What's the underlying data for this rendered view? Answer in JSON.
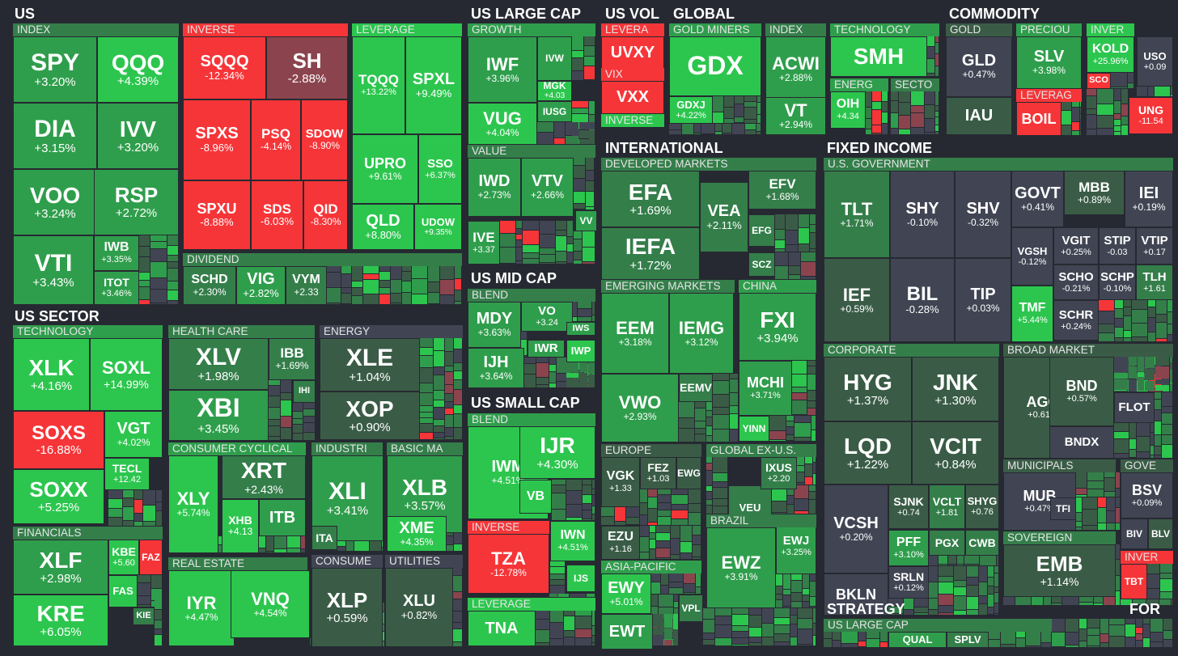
{
  "colors": {
    "background": "#262931",
    "strong_green": "#2cc64e",
    "green": "#2f9e4c",
    "mid_green": "#347e4a",
    "dark_green": "#3a5c46",
    "neutral": "#414553",
    "dark_red": "#8b444e",
    "red": "#f63538"
  },
  "sectors": [
    "US",
    "US SECTOR",
    "US LARGE CAP",
    "US MID CAP",
    "US SMALL CAP",
    "US VOL",
    "GLOBAL",
    "INTERNATIONAL",
    "COMMODITY",
    "FIXED INCOME",
    "STRATEGY",
    "FOR"
  ],
  "groups": [
    "INDEX",
    "INVERSE",
    "LEVERAGE",
    "DIVIDEND",
    "TECHNOLOGY",
    "HEALTH CARE",
    "ENERGY",
    "FINANCIALS",
    "CONSUMER CYCLICAL",
    "INDUSTRI",
    "BASIC MA",
    "REAL ESTATE",
    "CONSUME",
    "UTILITIES",
    "GROWTH",
    "VALUE",
    "BLEND",
    "BLEND",
    "INVERSE",
    "LEVERAGE",
    "LEVERA",
    "VIX",
    "INVERSE",
    "GOLD MINERS",
    "INDEX",
    "TECHNOLOGY",
    "ENERG",
    "SECTO",
    "DEVELOPED MARKETS",
    "EMERGING MARKETS",
    "CHINA",
    "EUROPE",
    "GLOBAL EX-U.S.",
    "ASIA-PACIFIC",
    "BRAZIL",
    "GOLD",
    "PRECIOU",
    "INVER",
    "LEVERAG",
    "U.S. GOVERNMENT",
    "CORPORATE",
    "BROAD MARKET",
    "MUNICIPALS",
    "GOVE",
    "SOVEREIGN",
    "INVER",
    "US LARGE CAP"
  ],
  "chart_data": {
    "type": "treemap",
    "title": "",
    "tiles": [
      {
        "ticker": "SPY",
        "change": "+3.20%",
        "value": 3.2
      },
      {
        "ticker": "QQQ",
        "change": "+4.39%",
        "value": 4.39
      },
      {
        "ticker": "DIA",
        "change": "+3.15%",
        "value": 3.15
      },
      {
        "ticker": "IVV",
        "change": "+3.20%",
        "value": 3.2
      },
      {
        "ticker": "VOO",
        "change": "+3.24%",
        "value": 3.24
      },
      {
        "ticker": "RSP",
        "change": "+2.72%",
        "value": 2.72
      },
      {
        "ticker": "VTI",
        "change": "+3.43%",
        "value": 3.43
      },
      {
        "ticker": "IWB",
        "change": "+3.35%",
        "value": 3.35
      },
      {
        "ticker": "ITOT",
        "change": "+3.46%",
        "value": 3.46
      },
      {
        "ticker": "SQQQ",
        "change": "-12.34%",
        "value": -12.34
      },
      {
        "ticker": "SH",
        "change": "-2.88%",
        "value": -2.88
      },
      {
        "ticker": "SPXS",
        "change": "-8.96%",
        "value": -8.96
      },
      {
        "ticker": "PSQ",
        "change": "-4.14%",
        "value": -4.14
      },
      {
        "ticker": "SDOW",
        "change": "-8.90%",
        "value": -8.9
      },
      {
        "ticker": "SPXU",
        "change": "-8.88%",
        "value": -8.88
      },
      {
        "ticker": "SDS",
        "change": "-6.03%",
        "value": -6.03
      },
      {
        "ticker": "QID",
        "change": "-8.30%",
        "value": -8.3
      },
      {
        "ticker": "TQQQ",
        "change": "+13.22%",
        "value": 13.22
      },
      {
        "ticker": "SPXL",
        "change": "+9.49%",
        "value": 9.49
      },
      {
        "ticker": "UPRO",
        "change": "+9.61%",
        "value": 9.61
      },
      {
        "ticker": "SSO",
        "change": "+6.37%",
        "value": 6.37
      },
      {
        "ticker": "QLD",
        "change": "+8.80%",
        "value": 8.8
      },
      {
        "ticker": "UDOW",
        "change": "+9.35%",
        "value": 9.35
      },
      {
        "ticker": "SCHD",
        "change": "+2.30%",
        "value": 2.3
      },
      {
        "ticker": "VIG",
        "change": "+2.82%",
        "value": 2.82
      },
      {
        "ticker": "VYM",
        "change": "+2.33",
        "value": 2.33
      },
      {
        "ticker": "XLK",
        "change": "+4.16%",
        "value": 4.16
      },
      {
        "ticker": "SOXL",
        "change": "+14.99%",
        "value": 14.99
      },
      {
        "ticker": "SOXS",
        "change": "-16.88%",
        "value": -16.88
      },
      {
        "ticker": "VGT",
        "change": "+4.02%",
        "value": 4.02
      },
      {
        "ticker": "SOXX",
        "change": "+5.25%",
        "value": 5.25
      },
      {
        "ticker": "TECL",
        "change": "+12.42",
        "value": 12.42
      },
      {
        "ticker": "XLF",
        "change": "+2.98%",
        "value": 2.98
      },
      {
        "ticker": "KBE",
        "change": "+5.60",
        "value": 5.6
      },
      {
        "ticker": "FAZ",
        "change": "",
        "value": -8
      },
      {
        "ticker": "FAS",
        "change": "",
        "value": 8
      },
      {
        "ticker": "KRE",
        "change": "+6.05%",
        "value": 6.05
      },
      {
        "ticker": "KIE",
        "change": "",
        "value": 2
      },
      {
        "ticker": "XLV",
        "change": "+1.98%",
        "value": 1.98
      },
      {
        "ticker": "IBB",
        "change": "+1.69%",
        "value": 1.69
      },
      {
        "ticker": "IHI",
        "change": "",
        "value": 2
      },
      {
        "ticker": "XBI",
        "change": "+3.45%",
        "value": 3.45
      },
      {
        "ticker": "XLE",
        "change": "+1.04%",
        "value": 1.04
      },
      {
        "ticker": "XOP",
        "change": "+0.90%",
        "value": 0.9
      },
      {
        "ticker": "XRT",
        "change": "+2.43%",
        "value": 2.43
      },
      {
        "ticker": "XLY",
        "change": "+5.74%",
        "value": 5.74
      },
      {
        "ticker": "XHB",
        "change": "+4.13",
        "value": 4.13
      },
      {
        "ticker": "ITB",
        "change": "",
        "value": 3
      },
      {
        "ticker": "XLI",
        "change": "+3.41%",
        "value": 3.41
      },
      {
        "ticker": "ITA",
        "change": "",
        "value": 2
      },
      {
        "ticker": "XLB",
        "change": "+3.57%",
        "value": 3.57
      },
      {
        "ticker": "XME",
        "change": "+4.35%",
        "value": 4.35
      },
      {
        "ticker": "IYR",
        "change": "+4.47%",
        "value": 4.47
      },
      {
        "ticker": "VNQ",
        "change": "+4.54%",
        "value": 4.54
      },
      {
        "ticker": "XLP",
        "change": "+0.59%",
        "value": 0.59
      },
      {
        "ticker": "XLU",
        "change": "+0.82%",
        "value": 0.82
      },
      {
        "ticker": "IWF",
        "change": "+3.96%",
        "value": 3.96
      },
      {
        "ticker": "IVW",
        "change": "",
        "value": 3.5
      },
      {
        "ticker": "MGK",
        "change": "+4.03",
        "value": 4.03
      },
      {
        "ticker": "VUG",
        "change": "+4.04%",
        "value": 4.04
      },
      {
        "ticker": "IUSG",
        "change": "",
        "value": 3.5
      },
      {
        "ticker": "IWD",
        "change": "+2.73%",
        "value": 2.73
      },
      {
        "ticker": "VTV",
        "change": "+2.66%",
        "value": 2.66
      },
      {
        "ticker": "IVE",
        "change": "+3.37",
        "value": 3.37
      },
      {
        "ticker": "VV",
        "change": "",
        "value": 3
      },
      {
        "ticker": "MDY",
        "change": "+3.63%",
        "value": 3.63
      },
      {
        "ticker": "VO",
        "change": "+3.24",
        "value": 3.24
      },
      {
        "ticker": "IWS",
        "change": "",
        "value": 3
      },
      {
        "ticker": "IWR",
        "change": "",
        "value": 3
      },
      {
        "ticker": "IWP",
        "change": "",
        "value": 4
      },
      {
        "ticker": "IJH",
        "change": "+3.64%",
        "value": 3.64
      },
      {
        "ticker": "IWM",
        "change": "+4.51%",
        "value": 4.51
      },
      {
        "ticker": "IJR",
        "change": "+4.30%",
        "value": 4.3
      },
      {
        "ticker": "VB",
        "change": "",
        "value": 4
      },
      {
        "ticker": "TZA",
        "change": "-12.78%",
        "value": -12.78
      },
      {
        "ticker": "IWN",
        "change": "+4.51%",
        "value": 4.51
      },
      {
        "ticker": "IJS",
        "change": "",
        "value": 4
      },
      {
        "ticker": "TNA",
        "change": "",
        "value": 13
      },
      {
        "ticker": "UVXY",
        "change": "",
        "value": -10
      },
      {
        "ticker": "VXX",
        "change": "",
        "value": -7
      },
      {
        "ticker": "GDX",
        "change": "",
        "value": 4
      },
      {
        "ticker": "GDXJ",
        "change": "+4.22%",
        "value": 4.22
      },
      {
        "ticker": "ACWI",
        "change": "+2.88%",
        "value": 2.88
      },
      {
        "ticker": "VT",
        "change": "+2.94%",
        "value": 2.94
      },
      {
        "ticker": "SMH",
        "change": "",
        "value": 4.5
      },
      {
        "ticker": "OIH",
        "change": "+4.34",
        "value": 4.34
      },
      {
        "ticker": "EFA",
        "change": "+1.69%",
        "value": 1.69
      },
      {
        "ticker": "EFV",
        "change": "+1.68%",
        "value": 1.68
      },
      {
        "ticker": "VEA",
        "change": "+2.11%",
        "value": 2.11
      },
      {
        "ticker": "EFG",
        "change": "",
        "value": 2
      },
      {
        "ticker": "IEFA",
        "change": "+1.72%",
        "value": 1.72
      },
      {
        "ticker": "SCZ",
        "change": "",
        "value": 2
      },
      {
        "ticker": "EEM",
        "change": "+3.18%",
        "value": 3.18
      },
      {
        "ticker": "IEMG",
        "change": "+3.12%",
        "value": 3.12
      },
      {
        "ticker": "VWO",
        "change": "+2.93%",
        "value": 2.93
      },
      {
        "ticker": "EEMV",
        "change": "",
        "value": 1.5
      },
      {
        "ticker": "FXI",
        "change": "+3.94%",
        "value": 3.94
      },
      {
        "ticker": "MCHI",
        "change": "+3.71%",
        "value": 3.71
      },
      {
        "ticker": "YINN",
        "change": "",
        "value": 11
      },
      {
        "ticker": "VGK",
        "change": "+1.33",
        "value": 1.33
      },
      {
        "ticker": "FEZ",
        "change": "+1.03",
        "value": 1.03
      },
      {
        "ticker": "EWG",
        "change": "",
        "value": 1
      },
      {
        "ticker": "EZU",
        "change": "+1.16",
        "value": 1.16
      },
      {
        "ticker": "VEU",
        "change": "",
        "value": 2
      },
      {
        "ticker": "IXUS",
        "change": "+2.20",
        "value": 2.2
      },
      {
        "ticker": "EWY",
        "change": "+5.01%",
        "value": 5.01
      },
      {
        "ticker": "VPL",
        "change": "",
        "value": 2
      },
      {
        "ticker": "EWT",
        "change": "",
        "value": 3
      },
      {
        "ticker": "EWZ",
        "change": "+3.91%",
        "value": 3.91
      },
      {
        "ticker": "EWJ",
        "change": "+3.25%",
        "value": 3.25
      },
      {
        "ticker": "GLD",
        "change": "+0.47%",
        "value": 0.47
      },
      {
        "ticker": "IAU",
        "change": "",
        "value": 0.5
      },
      {
        "ticker": "SLV",
        "change": "+3.98%",
        "value": 3.98
      },
      {
        "ticker": "SCO",
        "change": "",
        "value": -3
      },
      {
        "ticker": "KOLD",
        "change": "+25.96%",
        "value": 25.96
      },
      {
        "ticker": "USO",
        "change": "+0.09",
        "value": 0.09
      },
      {
        "ticker": "BOIL",
        "change": "",
        "value": -10
      },
      {
        "ticker": "UNG",
        "change": "-11.54",
        "value": -11.54
      },
      {
        "ticker": "TLT",
        "change": "+1.71%",
        "value": 1.71
      },
      {
        "ticker": "SHY",
        "change": "-0.10%",
        "value": -0.1
      },
      {
        "ticker": "SHV",
        "change": "-0.32%",
        "value": -0.32
      },
      {
        "ticker": "GOVT",
        "change": "+0.41%",
        "value": 0.41
      },
      {
        "ticker": "MBB",
        "change": "+0.89%",
        "value": 0.89
      },
      {
        "ticker": "IEI",
        "change": "+0.19%",
        "value": 0.19
      },
      {
        "ticker": "VGSH",
        "change": "-0.12%",
        "value": -0.12
      },
      {
        "ticker": "VGIT",
        "change": "+0.25%",
        "value": 0.25
      },
      {
        "ticker": "STIP",
        "change": "-0.03",
        "value": -0.03
      },
      {
        "ticker": "VTIP",
        "change": "+0.17",
        "value": 0.17
      },
      {
        "ticker": "IEF",
        "change": "+0.59%",
        "value": 0.59
      },
      {
        "ticker": "BIL",
        "change": "-0.28%",
        "value": -0.28
      },
      {
        "ticker": "TIP",
        "change": "+0.03%",
        "value": 0.03
      },
      {
        "ticker": "SCHO",
        "change": "-0.21%",
        "value": -0.21
      },
      {
        "ticker": "SCHP",
        "change": "-0.10%",
        "value": -0.1
      },
      {
        "ticker": "TLH",
        "change": "+1.61",
        "value": 1.61
      },
      {
        "ticker": "TMF",
        "change": "+5.44%",
        "value": 5.44
      },
      {
        "ticker": "SCHR",
        "change": "+0.24%",
        "value": 0.24
      },
      {
        "ticker": "HYG",
        "change": "+1.37%",
        "value": 1.37
      },
      {
        "ticker": "JNK",
        "change": "+1.30%",
        "value": 1.3
      },
      {
        "ticker": "LQD",
        "change": "+1.22%",
        "value": 1.22
      },
      {
        "ticker": "VCIT",
        "change": "+0.84%",
        "value": 0.84
      },
      {
        "ticker": "VCSH",
        "change": "+0.20%",
        "value": 0.2
      },
      {
        "ticker": "SJNK",
        "change": "+0.74",
        "value": 0.74
      },
      {
        "ticker": "VCLT",
        "change": "+1.81",
        "value": 1.81
      },
      {
        "ticker": "SHYG",
        "change": "+0.76",
        "value": 0.76
      },
      {
        "ticker": "PFF",
        "change": "+3.10%",
        "value": 3.1
      },
      {
        "ticker": "PGX",
        "change": "",
        "value": 2
      },
      {
        "ticker": "CWB",
        "change": "",
        "value": 2
      },
      {
        "ticker": "BKLN",
        "change": "",
        "value": 0.3
      },
      {
        "ticker": "SRLN",
        "change": "+0.12%",
        "value": 0.12
      },
      {
        "ticker": "AGG",
        "change": "+0.61%",
        "value": 0.61
      },
      {
        "ticker": "BND",
        "change": "+0.57%",
        "value": 0.57
      },
      {
        "ticker": "FLOT",
        "change": "",
        "value": 0.05
      },
      {
        "ticker": "BNDX",
        "change": "",
        "value": 0.3
      },
      {
        "ticker": "MUB",
        "change": "+0.47%",
        "value": 0.47
      },
      {
        "ticker": "TFI",
        "change": "",
        "value": 0.4
      },
      {
        "ticker": "BSV",
        "change": "+0.09%",
        "value": 0.09
      },
      {
        "ticker": "BIV",
        "change": "",
        "value": 0.2
      },
      {
        "ticker": "BLV",
        "change": "",
        "value": 0.5
      },
      {
        "ticker": "EMB",
        "change": "+1.14%",
        "value": 1.14
      },
      {
        "ticker": "TBT",
        "change": "",
        "value": -3
      },
      {
        "ticker": "QUAL",
        "change": "",
        "value": 3
      },
      {
        "ticker": "SPLV",
        "change": "",
        "value": 2
      }
    ]
  }
}
